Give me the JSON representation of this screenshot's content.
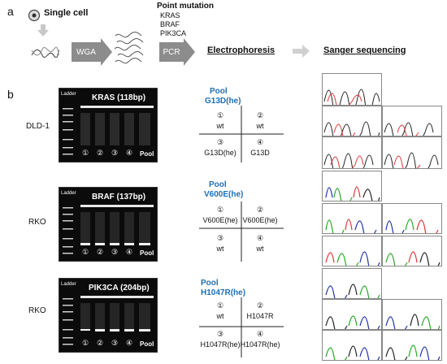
{
  "panel_a": {
    "label": "a",
    "single_cell": "Single cell",
    "wga": "WGA",
    "pcr": "PCR",
    "point_mutation_title": "Point mutation",
    "genes": [
      "KRAS",
      "BRAF",
      "PIK3CA"
    ],
    "electrophoresis": "Electrophoresis",
    "sanger": "Sanger sequencing"
  },
  "panel_b": {
    "label": "b",
    "rows": [
      {
        "cell_line": "DLD-1",
        "gel_title": "KRAS (118bp)",
        "ladder": "Ladder",
        "lanes": [
          "①",
          "②",
          "③",
          "④"
        ],
        "pool": "Pool",
        "pool_header": [
          "Pool",
          "G13D(he)"
        ],
        "cells": [
          {
            "num": "①",
            "txt": "wt"
          },
          {
            "num": "②",
            "txt": "wt"
          },
          {
            "num": "③",
            "txt": "G13D(he)"
          },
          {
            "num": "④",
            "txt": "G13D"
          }
        ]
      },
      {
        "cell_line": "RKO",
        "gel_title": "BRAF (137bp)",
        "ladder": "Ladder",
        "lanes": [
          "①",
          "②",
          "③",
          "④"
        ],
        "pool": "Pool",
        "pool_header": [
          "Pool",
          "V600E(he)"
        ],
        "cells": [
          {
            "num": "①",
            "txt": "V600E(he)"
          },
          {
            "num": "②",
            "txt": "V600E(he)"
          },
          {
            "num": "③",
            "txt": "wt"
          },
          {
            "num": "④",
            "txt": "wt"
          }
        ]
      },
      {
        "cell_line": "RKO",
        "gel_title": "PIK3CA (204bp)",
        "ladder": "Ladder",
        "lanes": [
          "①",
          "②",
          "③",
          "④"
        ],
        "pool": "Pool",
        "pool_header": [
          "Pool",
          "H1047R(he)"
        ],
        "cells": [
          {
            "num": "①",
            "txt": "wt"
          },
          {
            "num": "②",
            "txt": "H1047R"
          },
          {
            "num": "③",
            "txt": "H1047R(he)"
          },
          {
            "num": "④",
            "txt": "H1047R(he)"
          }
        ]
      }
    ]
  },
  "colors": {
    "accent_blue": "#1f6fb2",
    "arrow_gray": "#8c8c8c",
    "gel_bg": "#0b0b0b"
  }
}
